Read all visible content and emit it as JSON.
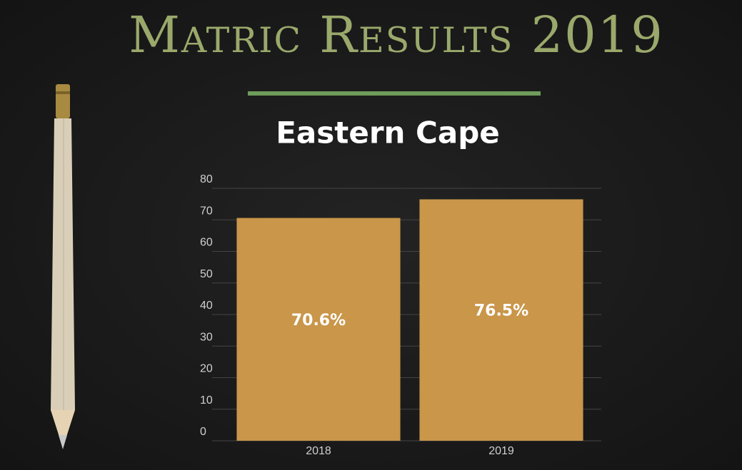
{
  "chart_data": {
    "type": "bar",
    "title": "Matric Results 2019",
    "subtitle": "Eastern Cape",
    "categories": [
      "2018",
      "2019"
    ],
    "values": [
      70.6,
      76.5
    ],
    "value_labels": [
      "70.6%",
      "76.5%"
    ],
    "color": "#c9964a",
    "ylim": [
      0,
      80
    ],
    "yticks": [
      0,
      10,
      20,
      30,
      40,
      50,
      60,
      70,
      80
    ],
    "grid": true
  }
}
